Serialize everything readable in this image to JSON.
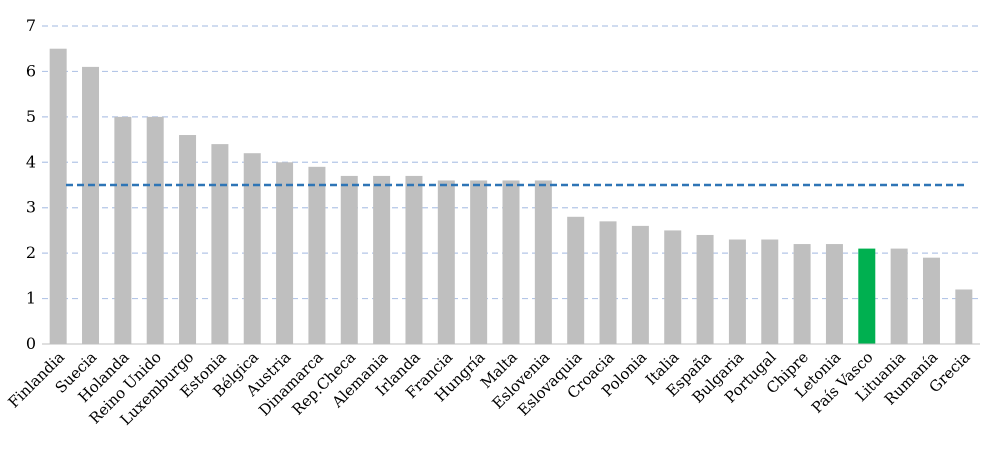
{
  "chart_data": {
    "type": "bar",
    "categories": [
      "Finlandia",
      "Suecia",
      "Holanda",
      "Reino Unido",
      "Luxemburgo",
      "Estonia",
      "Bélgica",
      "Austria",
      "Dinamarca",
      "Rep.Checa",
      "Alemania",
      "Irlanda",
      "Francia",
      "Hungría",
      "Malta",
      "Eslovenia",
      "Eslovaquia",
      "Croacia",
      "Polonia",
      "Italia",
      "España",
      "Bulgaria",
      "Portugal",
      "Chipre",
      "Letonia",
      "País Vasco",
      "Lituania",
      "Rumanía",
      "Grecia"
    ],
    "values": [
      6.5,
      6.1,
      5.0,
      5.0,
      4.6,
      4.4,
      4.2,
      4.0,
      3.9,
      3.7,
      3.7,
      3.7,
      3.6,
      3.6,
      3.6,
      3.6,
      2.8,
      2.7,
      2.6,
      2.5,
      2.4,
      2.3,
      2.3,
      2.2,
      2.2,
      2.1,
      2.1,
      1.9,
      1.2
    ],
    "highlight": "País Vasco",
    "reference_line": 3.5,
    "ylim": [
      0,
      7
    ],
    "yticks": [
      0,
      1,
      2,
      3,
      4,
      5,
      6,
      7
    ],
    "grid": true,
    "colors": {
      "bar": "#bfbfbf",
      "highlight": "#00b050",
      "reference": "#2e75b6",
      "grid": "#b4c6e7"
    }
  }
}
